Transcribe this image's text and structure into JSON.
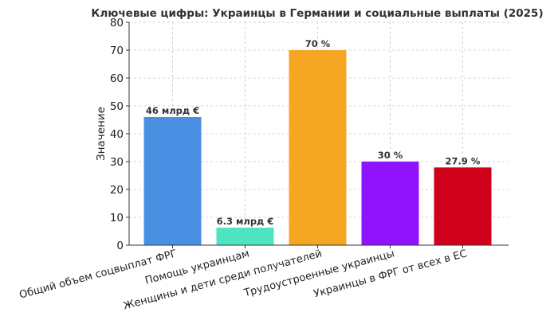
{
  "chart_data": {
    "type": "bar",
    "title": "Ключевые цифры: Украинцы в Германии и социальные выплаты (2025)",
    "xlabel": "",
    "ylabel": "Значение",
    "ylim": [
      0,
      80
    ],
    "yticks": [
      0,
      10,
      20,
      30,
      40,
      50,
      60,
      70,
      80
    ],
    "grid": true,
    "categories": [
      "Общий объем соцвыплат ФРГ",
      "Помощь украинцам",
      "Женщины и дети среди получателей",
      "Трудоустроенные украинцы",
      "Украинцы в ФРГ от всех в ЕС"
    ],
    "values": [
      46,
      6.3,
      70,
      30,
      27.9
    ],
    "data_labels": [
      "46 млрд €",
      "6.3 млрд €",
      "70 %",
      "30 %",
      "27.9 %"
    ],
    "colors": [
      "#4a90e2",
      "#50e3c2",
      "#f5a623",
      "#9013fe",
      "#d0021b"
    ]
  }
}
